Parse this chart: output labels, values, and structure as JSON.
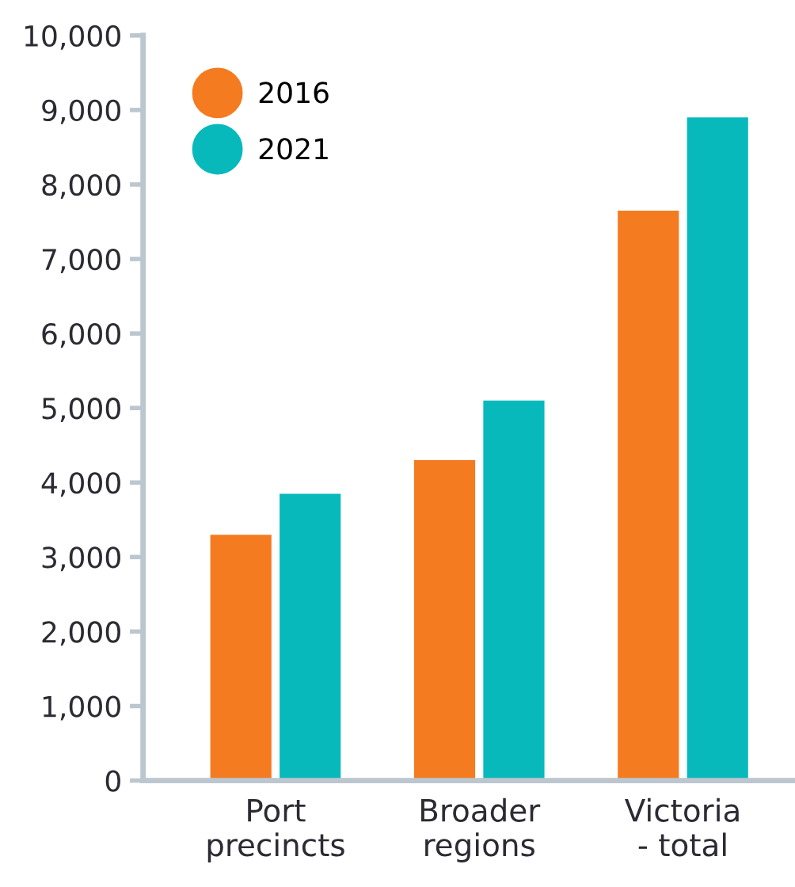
{
  "chart_data": {
    "type": "bar",
    "categories": [
      "Port\nprecincts",
      "Broader\nregions",
      "Victoria\n- total"
    ],
    "series": [
      {
        "name": "2016",
        "color": "#f47b20",
        "values": [
          3300,
          4300,
          7650
        ]
      },
      {
        "name": "2021",
        "color": "#08b9bc",
        "values": [
          3850,
          5100,
          8900
        ]
      }
    ],
    "ylim": [
      0,
      10000
    ],
    "yticks": [
      {
        "value": 0,
        "label": "0"
      },
      {
        "value": 1000,
        "label": "1,000"
      },
      {
        "value": 2000,
        "label": "2,000"
      },
      {
        "value": 3000,
        "label": "3,000"
      },
      {
        "value": 4000,
        "label": "4,000"
      },
      {
        "value": 5000,
        "label": "5,000"
      },
      {
        "value": 6000,
        "label": "6,000"
      },
      {
        "value": 7000,
        "label": "7,000"
      },
      {
        "value": 8000,
        "label": "8,000"
      },
      {
        "value": 9000,
        "label": "9,000"
      },
      {
        "value": 10000,
        "label": "10,000"
      }
    ],
    "legend": "top left",
    "marker": "circle",
    "grid": false
  }
}
